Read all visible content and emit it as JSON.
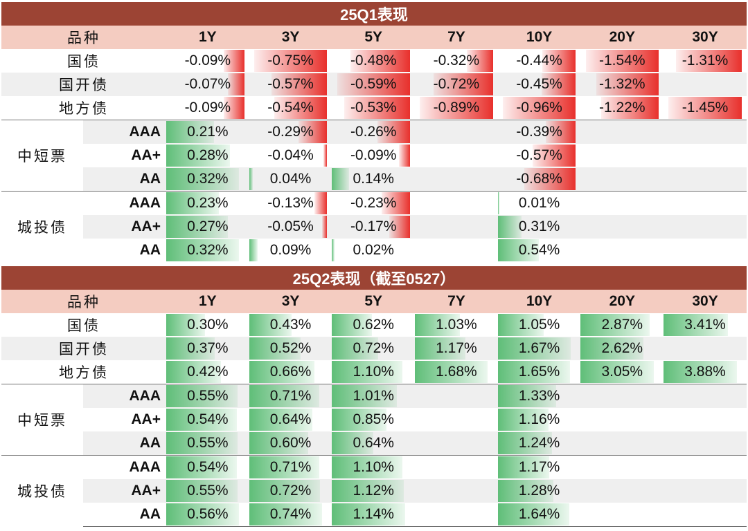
{
  "headers": [
    "品种",
    "1Y",
    "3Y",
    "5Y",
    "7Y",
    "10Y",
    "20Y",
    "30Y"
  ],
  "colors": {
    "negative": "#e8302c",
    "positive": "#5fbe78",
    "title_bg": "#9c4434",
    "header_bg": "#f4ccc1"
  },
  "chart_data": [
    {
      "type": "table",
      "title": "25Q1表现",
      "columns": [
        "1Y",
        "3Y",
        "5Y",
        "7Y",
        "10Y",
        "20Y",
        "30Y"
      ],
      "rows": [
        {
          "group": "",
          "label": "国债",
          "values": [
            "-0.09%",
            "-0.75%",
            "-0.48%",
            "-0.32%",
            "-0.44%",
            "-1.54%",
            "-1.31%"
          ]
        },
        {
          "group": "",
          "label": "国开债",
          "values": [
            "-0.07%",
            "-0.57%",
            "-0.59%",
            "-0.72%",
            "-0.45%",
            "-1.32%",
            ""
          ]
        },
        {
          "group": "",
          "label": "地方债",
          "values": [
            "-0.09%",
            "-0.54%",
            "-0.53%",
            "-0.89%",
            "-0.96%",
            "-1.22%",
            "-1.45%"
          ]
        },
        {
          "group": "中短票",
          "label": "AAA",
          "values": [
            "0.21%",
            "-0.29%",
            "-0.26%",
            "",
            "-0.39%",
            "",
            ""
          ]
        },
        {
          "group": "中短票",
          "label": "AA+",
          "values": [
            "0.28%",
            "-0.04%",
            "-0.09%",
            "",
            "-0.57%",
            "",
            ""
          ]
        },
        {
          "group": "中短票",
          "label": "AA",
          "values": [
            "0.32%",
            "0.04%",
            "0.14%",
            "",
            "-0.68%",
            "",
            ""
          ]
        },
        {
          "group": "城投债",
          "label": "AAA",
          "values": [
            "0.23%",
            "-0.13%",
            "-0.23%",
            "",
            "0.01%",
            "",
            ""
          ]
        },
        {
          "group": "城投债",
          "label": "AA+",
          "values": [
            "0.27%",
            "-0.05%",
            "-0.17%",
            "",
            "0.31%",
            "",
            ""
          ]
        },
        {
          "group": "城投债",
          "label": "AA",
          "values": [
            "0.32%",
            "0.09%",
            "0.02%",
            "",
            "0.54%",
            "",
            ""
          ]
        }
      ]
    },
    {
      "type": "table",
      "title": "25Q2表现（截至0527）",
      "columns": [
        "1Y",
        "3Y",
        "5Y",
        "7Y",
        "10Y",
        "20Y",
        "30Y"
      ],
      "rows": [
        {
          "group": "",
          "label": "国债",
          "values": [
            "0.30%",
            "0.43%",
            "0.62%",
            "1.03%",
            "1.05%",
            "2.87%",
            "3.41%"
          ]
        },
        {
          "group": "",
          "label": "国开债",
          "values": [
            "0.37%",
            "0.52%",
            "0.72%",
            "1.17%",
            "1.67%",
            "2.62%",
            ""
          ]
        },
        {
          "group": "",
          "label": "地方债",
          "values": [
            "0.42%",
            "0.66%",
            "1.10%",
            "1.68%",
            "1.65%",
            "3.05%",
            "3.88%"
          ]
        },
        {
          "group": "中短票",
          "label": "AAA",
          "values": [
            "0.55%",
            "0.71%",
            "1.01%",
            "",
            "1.33%",
            "",
            ""
          ]
        },
        {
          "group": "中短票",
          "label": "AA+",
          "values": [
            "0.54%",
            "0.64%",
            "0.85%",
            "",
            "1.16%",
            "",
            ""
          ]
        },
        {
          "group": "中短票",
          "label": "AA",
          "values": [
            "0.55%",
            "0.60%",
            "0.64%",
            "",
            "1.24%",
            "",
            ""
          ]
        },
        {
          "group": "城投债",
          "label": "AAA",
          "values": [
            "0.54%",
            "0.71%",
            "1.10%",
            "",
            "1.17%",
            "",
            ""
          ]
        },
        {
          "group": "城投债",
          "label": "AA+",
          "values": [
            "0.55%",
            "0.72%",
            "1.12%",
            "",
            "1.28%",
            "",
            ""
          ]
        },
        {
          "group": "城投债",
          "label": "AA",
          "values": [
            "0.56%",
            "0.74%",
            "1.14%",
            "",
            "1.64%",
            "",
            ""
          ]
        }
      ]
    }
  ]
}
